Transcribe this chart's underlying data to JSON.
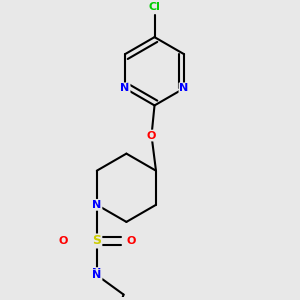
{
  "bg_color": "#e8e8e8",
  "atom_colors": {
    "N": "#0000ff",
    "O": "#ff0000",
    "S": "#cccc00",
    "Cl": "#00cc00"
  },
  "bond_color": "#000000",
  "bond_width": 1.5
}
